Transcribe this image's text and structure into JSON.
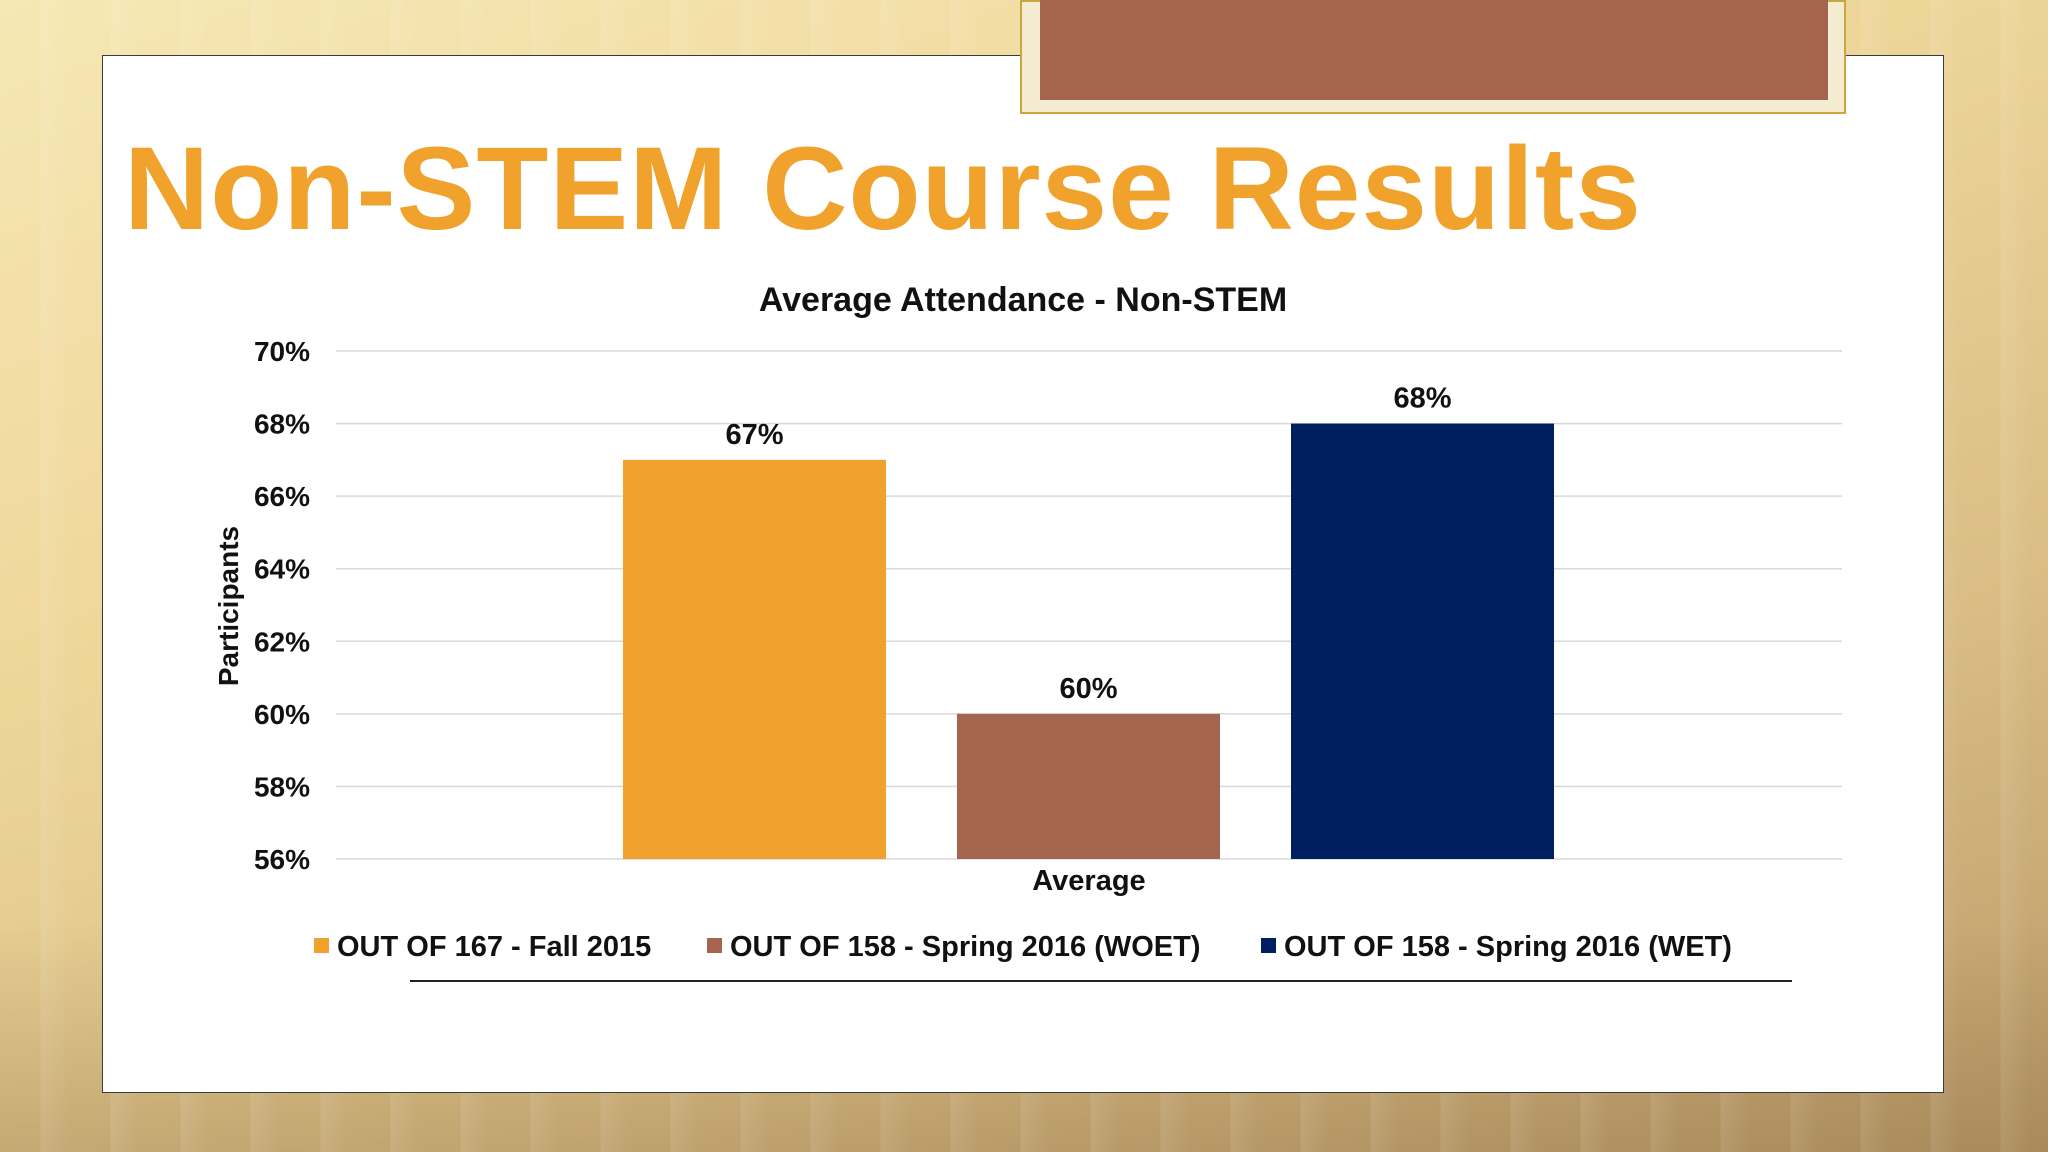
{
  "slide": {
    "title": "Non-STEM Course Results"
  },
  "colors": {
    "title": "#f0a22d",
    "tab": "#a5644e",
    "gridline": "#d9d9d9",
    "text": "#111111"
  },
  "chart_data": {
    "type": "bar",
    "title": "Average Attendance - Non-STEM",
    "xlabel": "Average",
    "ylabel": "Participants",
    "categories": [
      "Average"
    ],
    "ylim": [
      56,
      70
    ],
    "yticks": [
      "56%",
      "58%",
      "60%",
      "62%",
      "64%",
      "66%",
      "68%",
      "70%"
    ],
    "grid": true,
    "legend_position": "bottom",
    "series": [
      {
        "name": "OUT OF 167 - Fall 2015",
        "values": [
          67
        ],
        "label": "67%",
        "color": "#f0a22d"
      },
      {
        "name": "OUT OF 158 - Spring 2016 (WOET)",
        "values": [
          60
        ],
        "label": "60%",
        "color": "#a5644e"
      },
      {
        "name": "OUT OF 158 - Spring 2016 (WET)",
        "values": [
          68
        ],
        "label": "68%",
        "color": "#001f60"
      }
    ]
  }
}
